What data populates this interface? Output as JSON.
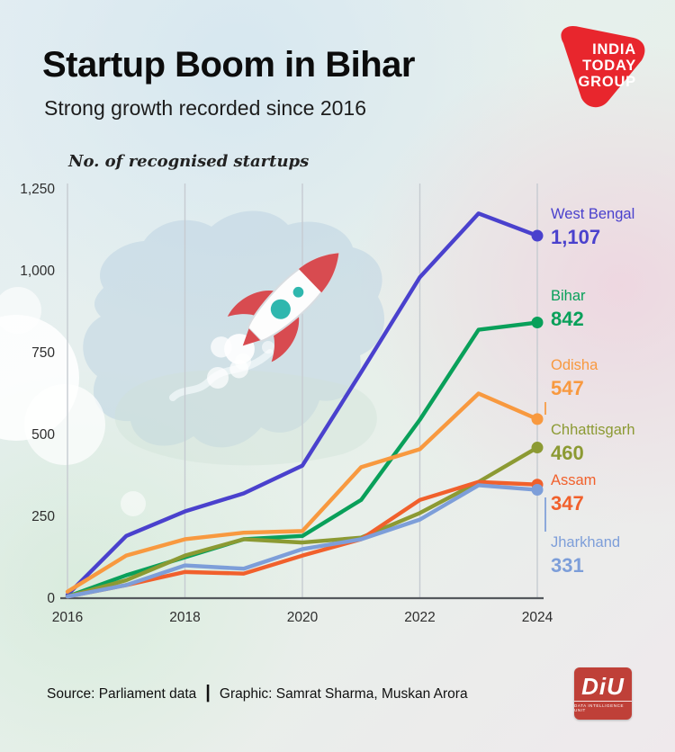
{
  "header": {
    "title": "Startup Boom in Bihar",
    "subtitle": "Strong growth recorded since 2016",
    "logo": {
      "line1": "INDIA",
      "line2": "TODAY",
      "line3": "GROUP"
    }
  },
  "chart_data": {
    "type": "line",
    "title": "No. of recognised startups",
    "x": [
      2016,
      2017,
      2018,
      2019,
      2020,
      2021,
      2022,
      2023,
      2024
    ],
    "x_ticks": [
      2016,
      2018,
      2020,
      2022,
      2024
    ],
    "x_tick_labels": [
      "2016",
      "2018",
      "2020",
      "2022",
      "2024"
    ],
    "y_ticks": [
      0,
      250,
      500,
      750,
      1000,
      1250
    ],
    "y_tick_labels": [
      "0",
      "250",
      "500",
      "750",
      "1,000",
      "1,250"
    ],
    "ylim": [
      0,
      1250
    ],
    "grid": "vertical",
    "legend_position": "right",
    "series": [
      {
        "name": "West Bengal",
        "color": "#4a41cd",
        "final_label": "1,107",
        "values": [
          10,
          190,
          265,
          320,
          405,
          690,
          980,
          1175,
          1107
        ]
      },
      {
        "name": "Bihar",
        "color": "#09a05a",
        "final_label": "842",
        "values": [
          5,
          70,
          125,
          180,
          190,
          300,
          545,
          820,
          842
        ]
      },
      {
        "name": "Odisha",
        "color": "#f8993f",
        "final_label": "547",
        "values": [
          20,
          130,
          180,
          200,
          205,
          400,
          455,
          625,
          547
        ]
      },
      {
        "name": "Chhattisgarh",
        "color": "#8c9a33",
        "final_label": "460",
        "values": [
          5,
          55,
          130,
          180,
          170,
          185,
          260,
          355,
          460
        ]
      },
      {
        "name": "Assam",
        "color": "#f1602c",
        "final_label": "347",
        "values": [
          5,
          40,
          80,
          75,
          130,
          180,
          300,
          355,
          347
        ]
      },
      {
        "name": "Jharkhand",
        "color": "#7d9ed9",
        "final_label": "331",
        "values": [
          5,
          40,
          100,
          90,
          150,
          180,
          240,
          345,
          331
        ]
      }
    ]
  },
  "footer": {
    "source": "Source: Parliament data",
    "divider": "|",
    "credit": "Graphic: Samrat Sharma, Muskan Arora"
  },
  "diu_logo": {
    "text": "DiU",
    "caption": "DATA INTELLIGENCE UNIT"
  }
}
